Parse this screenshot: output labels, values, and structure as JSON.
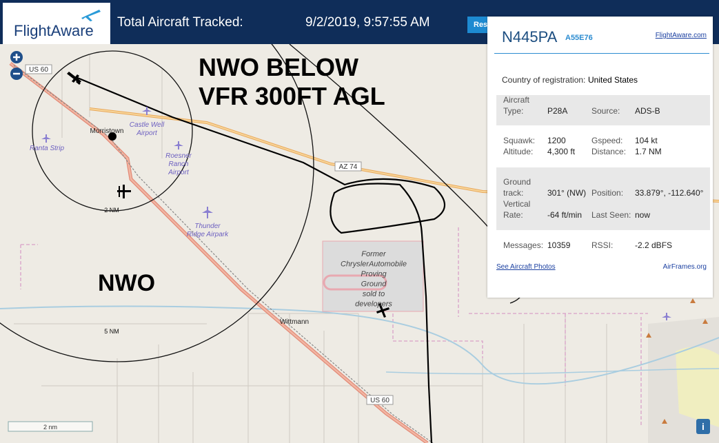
{
  "header": {
    "logo": "FlightAware",
    "title": "Total Aircraft Tracked:",
    "timestamp": "9/2/2019, 9:57:55 AM",
    "button": "Res"
  },
  "map": {
    "labels": [
      [
        "US 60"
      ],
      [
        "Morristown"
      ],
      [
        "Castle Well",
        "Airport"
      ],
      [
        "Ranta Strip"
      ],
      [
        "Roesner",
        "Ranch",
        "Airport"
      ],
      [
        "Thunder",
        "Ridge Airpark"
      ],
      [
        "AZ 74"
      ],
      [
        "Former",
        "ChryslerAutomobile",
        "Proving",
        "Ground",
        "sold to",
        "developers"
      ],
      [
        "Wittmann"
      ],
      [
        "US 60"
      ],
      [
        "2 NM"
      ],
      [
        "5 NM"
      ]
    ],
    "scale": "2 nm",
    "info_button": "i"
  },
  "annotations": {
    "restriction": [
      "NWO BELOW",
      "VFR 300FT AGL"
    ],
    "area": "NWO"
  },
  "panel": {
    "registration": "N445PA",
    "hex": "A55E76",
    "source_link": "FlightAware.com",
    "country_label": "Country of registration:",
    "country": "United States",
    "rows": [
      [
        {
          "label": [
            "Aircraft",
            "Type:"
          ],
          "value": "P28A"
        },
        {
          "label": [
            "Source:"
          ],
          "value": "ADS-B"
        }
      ],
      [
        {
          "label": [
            "Squawk:"
          ],
          "value": "1200"
        },
        {
          "label": [
            "Gspeed:"
          ],
          "value": "104 kt"
        }
      ],
      [
        {
          "label": [
            "Altitude:"
          ],
          "value": "4,300 ft"
        },
        {
          "label": [
            "Distance:"
          ],
          "value": "1.7 NM"
        }
      ],
      [
        {
          "label": [
            "Ground",
            "track:"
          ],
          "value": "301° (NW)"
        },
        {
          "label": [
            "Position:"
          ],
          "value": "33.879°, -112.640°"
        }
      ],
      [
        {
          "label": [
            "Vertical",
            "Rate:"
          ],
          "value": "-64 ft/min"
        },
        {
          "label": [
            "Last Seen:"
          ],
          "value": "now"
        }
      ],
      [
        {
          "label": [
            "Messages:"
          ],
          "value": "10359"
        },
        {
          "label": [
            "RSSI:"
          ],
          "value": "-2.2 dBFS"
        }
      ]
    ],
    "links": [
      "See Aircraft Photos",
      "AirFrames.org"
    ]
  }
}
